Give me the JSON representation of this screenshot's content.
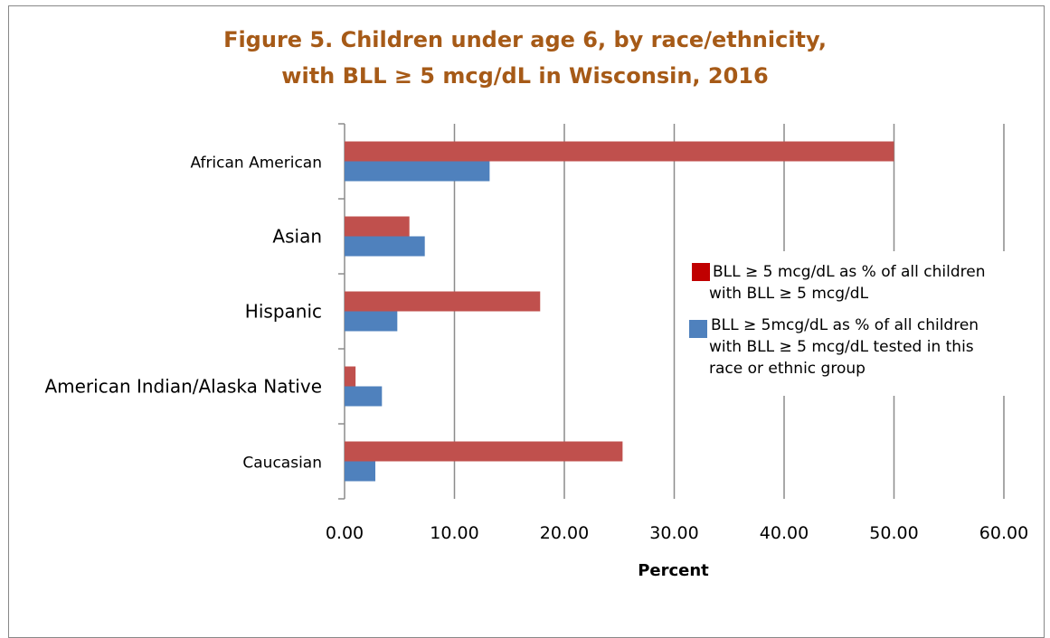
{
  "chart_data": {
    "type": "bar",
    "orientation": "horizontal",
    "title_line1": "Figure 5. Children under age 6, by race/ethnicity,",
    "title_line2": "with BLL ≥ 5 mcg/dL in Wisconsin, 2016",
    "xlabel": "Percent",
    "ylabel": "",
    "xlim": [
      0,
      60
    ],
    "x_ticks": [
      "0.00",
      "10.00",
      "20.00",
      "30.00",
      "40.00",
      "50.00",
      "60.00"
    ],
    "grid": "vertical",
    "legend_position": "right",
    "categories": [
      "African American",
      "Asian",
      "Hispanic",
      "American Indian/Alaska Native",
      "Caucasian"
    ],
    "series": [
      {
        "name": "BLL ≥ 5 mcg/dL as % of all children with BLL ≥ 5 mcg/dL",
        "legend_lines": [
          "BLL ≥ 5 mcg/dL as % of all children",
          "with BLL ≥ 5 mcg/dL"
        ],
        "color": "#C0504D",
        "legend_color": "#C00000",
        "values": [
          50.0,
          5.9,
          17.8,
          1.0,
          25.3
        ]
      },
      {
        "name": "BLL ≥ 5mcg/dL as % of all children with BLL ≥ 5 mcg/dL tested in this race or ethnic group",
        "legend_lines": [
          "BLL ≥ 5mcg/dL as % of all children",
          "with BLL ≥ 5 mcg/dL tested in this",
          "race or ethnic group"
        ],
        "color": "#4F81BD",
        "legend_color": "#4F81BD",
        "values": [
          13.2,
          7.3,
          4.8,
          3.4,
          2.8
        ]
      }
    ]
  }
}
